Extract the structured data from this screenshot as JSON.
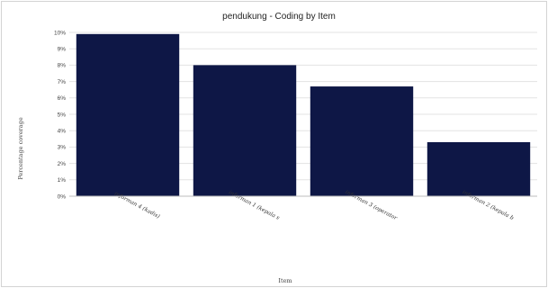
{
  "chart_data": {
    "type": "bar",
    "title": "pendukung - Coding by Item",
    "xlabel": "Item",
    "ylabel": "Percentage coverage",
    "categories": [
      "informan 4 (kadis)",
      "informan 1 (kepala s",
      "informan 3 (operator",
      "informan 2 (kepala b"
    ],
    "values": [
      9.9,
      8.0,
      6.7,
      3.3
    ],
    "ylim": [
      0,
      10
    ],
    "yticks": [
      "0%",
      "1%",
      "2%",
      "3%",
      "4%",
      "5%",
      "6%",
      "7%",
      "8%",
      "9%",
      "10%"
    ],
    "grid": true,
    "legend": "none",
    "bar_color": "#0e1746",
    "grid_color": "#e3e3e3"
  }
}
